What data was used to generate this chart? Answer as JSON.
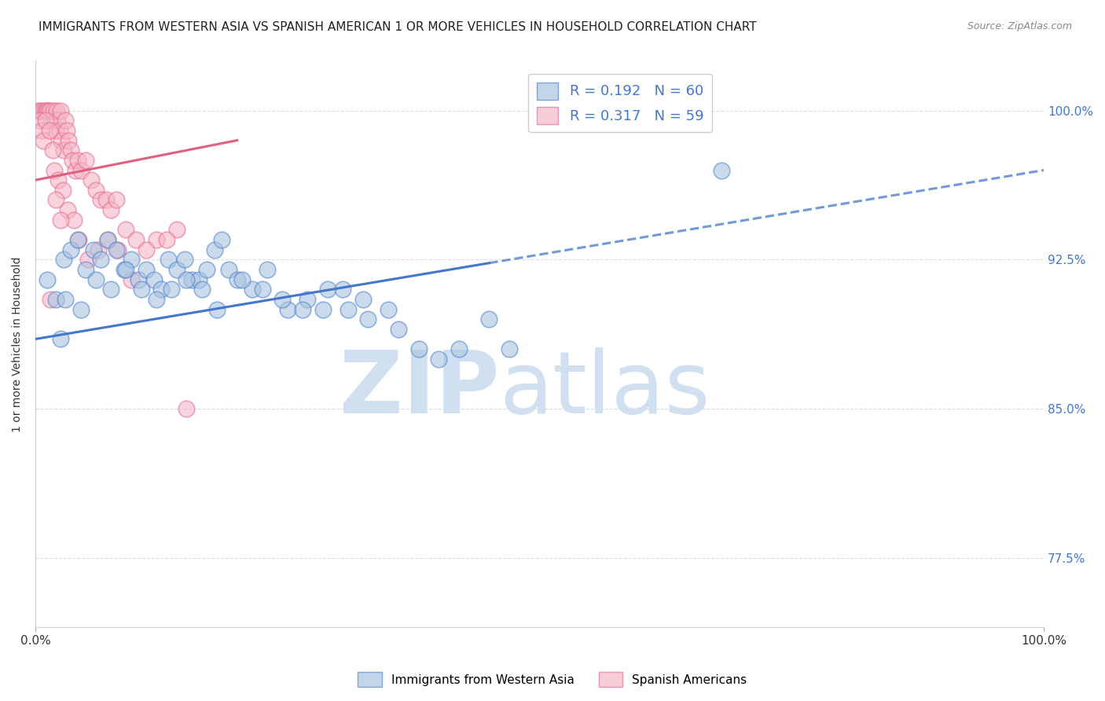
{
  "title": "IMMIGRANTS FROM WESTERN ASIA VS SPANISH AMERICAN 1 OR MORE VEHICLES IN HOUSEHOLD CORRELATION CHART",
  "source_text": "Source: ZipAtlas.com",
  "ylabel": "1 or more Vehicles in Household",
  "legend_blue_label": "Immigrants from Western Asia",
  "legend_pink_label": "Spanish Americans",
  "R_blue": 0.192,
  "N_blue": 60,
  "R_pink": 0.317,
  "N_pink": 59,
  "x_min": 0.0,
  "x_max": 100.0,
  "y_min": 74.0,
  "y_max": 102.5,
  "yticks": [
    77.5,
    85.0,
    92.5,
    100.0
  ],
  "ytick_labels": [
    "77.5%",
    "85.0%",
    "92.5%",
    "100.0%"
  ],
  "background_color": "#ffffff",
  "grid_color": "#dddddd",
  "blue_color": "#aac4e0",
  "pink_color": "#f5b8c8",
  "blue_edge_color": "#5588cc",
  "pink_edge_color": "#e87090",
  "blue_line_color": "#4477cc",
  "pink_line_color": "#e06080",
  "watermark_color": "#d0e0f0",
  "title_fontsize": 11,
  "axis_label_fontsize": 10,
  "tick_fontsize": 11,
  "blue_scatter_x": [
    1.2,
    2.0,
    2.8,
    3.5,
    4.2,
    5.0,
    5.8,
    6.5,
    7.2,
    8.0,
    8.8,
    9.5,
    10.2,
    11.0,
    11.8,
    12.5,
    13.2,
    14.0,
    14.8,
    15.5,
    16.2,
    17.0,
    17.8,
    18.5,
    19.2,
    20.0,
    21.5,
    23.0,
    25.0,
    27.0,
    29.0,
    31.0,
    33.0,
    35.0,
    38.0,
    40.0,
    42.0,
    45.0,
    47.0,
    3.0,
    4.5,
    6.0,
    7.5,
    9.0,
    10.5,
    12.0,
    13.5,
    15.0,
    16.5,
    18.0,
    20.5,
    22.5,
    24.5,
    26.5,
    28.5,
    30.5,
    32.5,
    36.0,
    68.0,
    2.5
  ],
  "blue_scatter_y": [
    91.5,
    90.5,
    92.5,
    93.0,
    93.5,
    92.0,
    93.0,
    92.5,
    93.5,
    93.0,
    92.0,
    92.5,
    91.5,
    92.0,
    91.5,
    91.0,
    92.5,
    92.0,
    92.5,
    91.5,
    91.5,
    92.0,
    93.0,
    93.5,
    92.0,
    91.5,
    91.0,
    92.0,
    90.0,
    90.5,
    91.0,
    90.0,
    89.5,
    90.0,
    88.0,
    87.5,
    88.0,
    89.5,
    88.0,
    90.5,
    90.0,
    91.5,
    91.0,
    92.0,
    91.0,
    90.5,
    91.0,
    91.5,
    91.0,
    90.0,
    91.5,
    91.0,
    90.5,
    90.0,
    90.0,
    91.0,
    90.5,
    89.0,
    97.0,
    88.5
  ],
  "pink_scatter_x": [
    0.3,
    0.5,
    0.7,
    0.9,
    1.1,
    1.2,
    1.3,
    1.5,
    1.6,
    1.8,
    2.0,
    2.1,
    2.2,
    2.4,
    2.5,
    2.6,
    2.8,
    3.0,
    3.1,
    3.3,
    3.5,
    3.7,
    4.0,
    4.2,
    4.5,
    5.0,
    5.5,
    6.0,
    6.5,
    7.0,
    7.5,
    8.0,
    9.0,
    10.0,
    12.0,
    14.0,
    0.4,
    0.6,
    0.8,
    1.0,
    1.4,
    1.7,
    1.9,
    2.3,
    2.7,
    3.2,
    3.8,
    4.3,
    5.2,
    6.2,
    7.2,
    8.2,
    9.5,
    11.0,
    13.0,
    15.0,
    2.0,
    2.5,
    1.5
  ],
  "pink_scatter_y": [
    100.0,
    100.0,
    100.0,
    100.0,
    100.0,
    100.0,
    100.0,
    100.0,
    99.5,
    100.0,
    99.0,
    100.0,
    99.5,
    99.0,
    100.0,
    98.5,
    98.0,
    99.5,
    99.0,
    98.5,
    98.0,
    97.5,
    97.0,
    97.5,
    97.0,
    97.5,
    96.5,
    96.0,
    95.5,
    95.5,
    95.0,
    95.5,
    94.0,
    93.5,
    93.5,
    94.0,
    99.5,
    99.0,
    98.5,
    99.5,
    99.0,
    98.0,
    97.0,
    96.5,
    96.0,
    95.0,
    94.5,
    93.5,
    92.5,
    93.0,
    93.5,
    93.0,
    91.5,
    93.0,
    93.5,
    85.0,
    95.5,
    94.5,
    90.5
  ],
  "blue_trend_x0": 0.0,
  "blue_trend_y0": 88.5,
  "blue_trend_x1": 100.0,
  "blue_trend_y1": 97.0,
  "pink_trend_x0": 0.0,
  "pink_trend_y0": 96.5,
  "pink_trend_x1": 20.0,
  "pink_trend_y1": 98.5,
  "blue_solid_end": 45.0,
  "pink_solid_end": 18.0
}
